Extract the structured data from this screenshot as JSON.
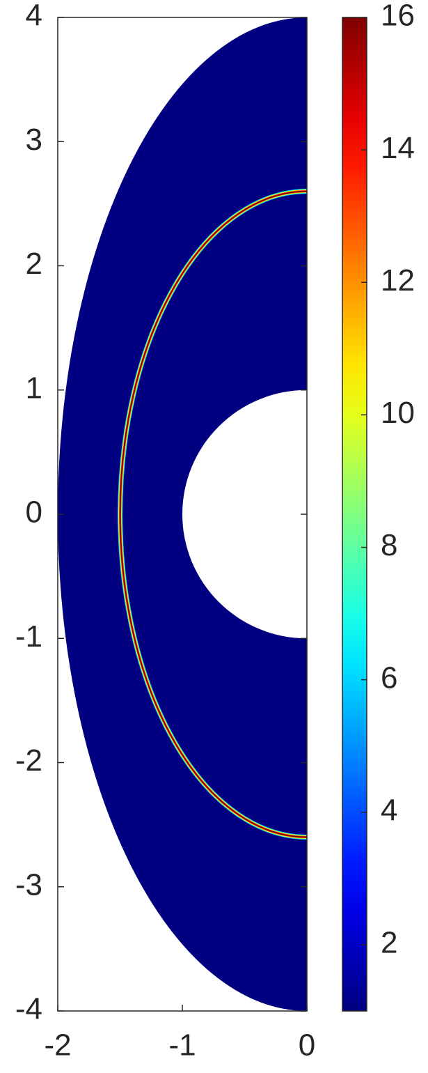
{
  "chart_data": {
    "type": "field",
    "xlim": [
      -2,
      0
    ],
    "xticks": [
      -2,
      -1,
      0
    ],
    "ylim": [
      -4,
      4
    ],
    "yticks": [
      -4,
      -3,
      -2,
      -1,
      0,
      1,
      2,
      3,
      4
    ],
    "colormap": "jet",
    "colorbar": {
      "lim": [
        1,
        16
      ],
      "ticks": [
        2,
        4,
        6,
        8,
        10,
        12,
        14,
        16
      ]
    },
    "domain": {
      "outer_semi_axes": [
        2,
        4
      ],
      "inner_radius": 1
    },
    "front": {
      "semi_axes": [
        1.5,
        2.6
      ]
    },
    "field_min": 1,
    "field_max": 16
  }
}
